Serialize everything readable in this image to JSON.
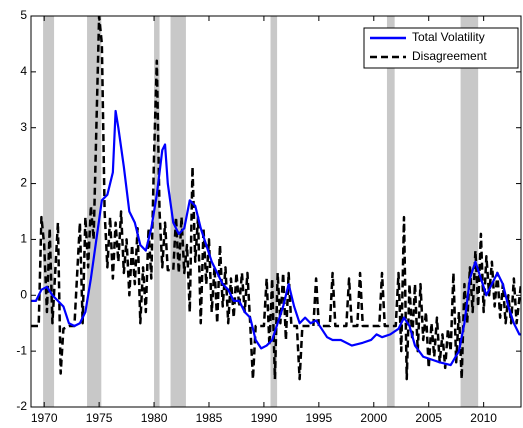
{
  "chart_data": {
    "type": "line",
    "xlim": [
      1968.8,
      2013.4
    ],
    "xticks": [
      1970,
      1975,
      1980,
      1985,
      1990,
      1995,
      2000,
      2005,
      2010
    ],
    "ylim": [
      -2,
      5
    ],
    "yticks": [
      -2,
      -1,
      0,
      1,
      2,
      3,
      4,
      5
    ],
    "shaded_periods": [
      [
        1969.9,
        1970.9
      ],
      [
        1973.9,
        1975.2
      ],
      [
        1980.0,
        1980.5
      ],
      [
        1981.5,
        1982.9
      ],
      [
        1990.6,
        1991.2
      ],
      [
        2001.2,
        2001.9
      ],
      [
        2007.9,
        2009.5
      ]
    ],
    "shade_color": "#c8c8c8",
    "legend": "upper right",
    "series": [
      {
        "name": "Total Volatility",
        "color": "#0000ff",
        "style": "solid",
        "x": [
          1968.8,
          1969.25,
          1969.75,
          1970.25,
          1970.75,
          1971.25,
          1971.75,
          1972.25,
          1972.75,
          1973.25,
          1973.75,
          1974.25,
          1974.75,
          1975.25,
          1975.75,
          1976.25,
          1976.5,
          1976.75,
          1977.25,
          1977.75,
          1978.25,
          1978.75,
          1979.25,
          1979.75,
          1980.25,
          1980.75,
          1981,
          1981.25,
          1981.75,
          1982.25,
          1982.75,
          1983.25,
          1983.75,
          1984.25,
          1984.75,
          1985.25,
          1985.75,
          1986.25,
          1986.75,
          1987.25,
          1987.75,
          1988.25,
          1988.75,
          1989.25,
          1989.75,
          1990.25,
          1990.75,
          1991.25,
          1991.75,
          1992.25,
          1992.75,
          1993.25,
          1993.75,
          1994.25,
          1994.75,
          1995.25,
          1995.75,
          1996.25,
          1997,
          1998,
          1999,
          1999.75,
          2000.25,
          2000.75,
          2001.5,
          2002.25,
          2002.75,
          2003.25,
          2003.75,
          2004.5,
          2005.25,
          2006,
          2007,
          2007.75,
          2008.25,
          2008.75,
          2009.25,
          2009.75,
          2010.25,
          2010.75,
          2011.25,
          2011.75,
          2012.25,
          2012.75,
          2013.25,
          2013.4
        ],
        "values": [
          -0.1,
          -0.1,
          0.1,
          0.15,
          0.0,
          -0.1,
          -0.2,
          -0.5,
          -0.55,
          -0.5,
          -0.3,
          0.3,
          1.0,
          1.7,
          1.8,
          2.2,
          3.3,
          3.0,
          2.3,
          1.5,
          1.3,
          0.9,
          0.8,
          1.2,
          1.8,
          2.6,
          2.7,
          2.0,
          1.3,
          1.1,
          1.2,
          1.7,
          1.6,
          1.2,
          0.9,
          0.6,
          0.4,
          0.2,
          0.1,
          -0.1,
          -0.1,
          -0.3,
          -0.4,
          -0.8,
          -0.95,
          -0.9,
          -0.8,
          -0.5,
          -0.2,
          0.2,
          -0.2,
          -0.5,
          -0.4,
          -0.5,
          -0.45,
          -0.6,
          -0.75,
          -0.8,
          -0.8,
          -0.9,
          -0.85,
          -0.8,
          -0.7,
          -0.75,
          -0.7,
          -0.6,
          -0.4,
          -0.55,
          -0.9,
          -1.1,
          -1.15,
          -1.2,
          -1.25,
          -1.0,
          -0.5,
          0.3,
          0.6,
          0.3,
          0.0,
          0.2,
          0.4,
          0.2,
          -0.2,
          -0.5,
          -0.7,
          -0.7
        ]
      },
      {
        "name": "Disagreement",
        "color": "#000000",
        "style": "dashed",
        "x": [
          1968.8,
          1969.5,
          1969.75,
          1970,
          1970.25,
          1970.5,
          1970.75,
          1971.25,
          1971.5,
          1971.75,
          1972.25,
          1972.75,
          1973.25,
          1973.5,
          1973.75,
          1974,
          1974.25,
          1974.5,
          1974.75,
          1975,
          1975.25,
          1975.5,
          1975.75,
          1976,
          1976.25,
          1976.5,
          1976.75,
          1977,
          1977.25,
          1977.5,
          1977.75,
          1978,
          1978.25,
          1978.5,
          1978.75,
          1979,
          1979.25,
          1979.5,
          1979.75,
          1980,
          1980.25,
          1980.5,
          1980.75,
          1981,
          1981.25,
          1981.75,
          1982,
          1982.25,
          1982.5,
          1982.75,
          1983,
          1983.25,
          1983.5,
          1983.75,
          1984,
          1984.25,
          1984.5,
          1984.75,
          1985,
          1985.25,
          1985.5,
          1985.75,
          1986,
          1986.25,
          1986.5,
          1986.75,
          1987,
          1987.25,
          1987.5,
          1987.75,
          1988,
          1988.25,
          1988.5,
          1988.75,
          1989,
          1989.25,
          1990,
          1990.25,
          1990.5,
          1990.75,
          1991,
          1991.25,
          1991.5,
          1991.75,
          1992,
          1992.25,
          1992.5,
          1993,
          1993.25,
          1993.5,
          1994.5,
          1994.75,
          1995,
          1996,
          1996.25,
          1996.5,
          1997.5,
          1997.75,
          1998,
          1998.5,
          1998.75,
          1999,
          2000.5,
          2000.75,
          2001,
          2002,
          2002.25,
          2002.5,
          2002.75,
          2003,
          2003.25,
          2003.5,
          2003.75,
          2004,
          2004.25,
          2004.5,
          2004.75,
          2005,
          2005.25,
          2005.5,
          2005.75,
          2006,
          2006.25,
          2006.5,
          2006.75,
          2007,
          2007.25,
          2007.5,
          2007.75,
          2008,
          2008.25,
          2008.5,
          2008.75,
          2009,
          2009.25,
          2009.5,
          2009.75,
          2010,
          2010.25,
          2010.5,
          2010.75,
          2011,
          2011.25,
          2011.5,
          2011.75,
          2012,
          2012.25,
          2012.5,
          2012.75,
          2013,
          2013.4
        ],
        "values": [
          -0.55,
          -0.55,
          1.4,
          0.9,
          -0.3,
          1.2,
          -0.5,
          1.3,
          -1.4,
          -0.6,
          -0.55,
          -0.55,
          1.3,
          -0.5,
          1.4,
          0.5,
          1.6,
          1.0,
          3.0,
          5.0,
          4.5,
          1.5,
          0.5,
          1.4,
          0.3,
          1.3,
          0.6,
          1.5,
          0.4,
          1.0,
          0.0,
          0.9,
          0.2,
          1.2,
          -0.5,
          0.5,
          -0.3,
          1.2,
          0.3,
          2.5,
          4.2,
          1.5,
          0.5,
          1.3,
          0.45,
          0.45,
          1.4,
          0.4,
          1.4,
          0.4,
          0.9,
          -0.3,
          2.3,
          0.6,
          1.4,
          -0.5,
          1.2,
          0.2,
          1.0,
          -0.3,
          0.5,
          -0.5,
          0.9,
          -0.2,
          0.5,
          -0.5,
          0.3,
          -0.4,
          0.4,
          -0.2,
          0.4,
          -0.3,
          0.4,
          -0.5,
          -1.5,
          -0.55,
          -0.55,
          0.3,
          -0.9,
          0.3,
          -1.5,
          0.4,
          -0.5,
          0.4,
          -0.8,
          0.4,
          -0.55,
          -0.55,
          -1.5,
          -0.55,
          -0.55,
          0.3,
          -0.55,
          -0.55,
          0.4,
          -0.55,
          -0.55,
          0.3,
          -0.55,
          -0.55,
          0.4,
          -0.55,
          -0.55,
          0.4,
          -0.55,
          -0.55,
          0.4,
          -1.0,
          1.4,
          -1.5,
          0.2,
          -0.8,
          0.2,
          -1.0,
          0.2,
          -0.8,
          -0.3,
          -1.3,
          -0.5,
          -1.1,
          -0.4,
          -1.2,
          -0.7,
          -1.3,
          -0.6,
          -1.0,
          0.4,
          -1.2,
          -0.3,
          -1.5,
          0.2,
          -0.5,
          0.5,
          -0.3,
          0.8,
          -0.2,
          1.1,
          -0.3,
          0.7,
          0.0,
          0.6,
          -0.2,
          0.4,
          -0.4,
          0.2,
          -0.5,
          0.0,
          -0.5,
          0.3,
          -0.5,
          0.2
        ]
      }
    ]
  }
}
